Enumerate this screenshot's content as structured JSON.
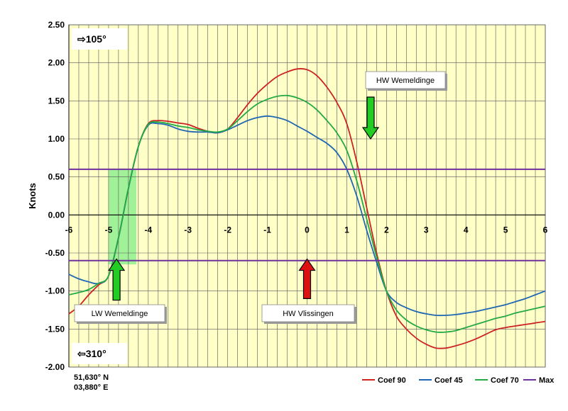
{
  "chart_data": {
    "type": "line",
    "ylabel": "Knots",
    "xlabel": "",
    "xlim": [
      -6,
      6
    ],
    "ylim": [
      -2.0,
      2.5
    ],
    "x_ticks": [
      "-6",
      "-5",
      "-4",
      "-3",
      "-2",
      "-1",
      "0",
      "1",
      "2",
      "3",
      "4",
      "5",
      "6"
    ],
    "y_ticks": [
      "2.50",
      "2.00",
      "1.50",
      "1.00",
      "0.50",
      "0.00",
      "-0.50",
      "-1.00",
      "-1.50",
      "-2.00"
    ],
    "grid": true,
    "background_color": "#ffffc8",
    "legend_position": "bottom-right",
    "series": [
      {
        "name": "Coef 90",
        "color": "#cc2222",
        "points": [
          [
            -6,
            -1.3
          ],
          [
            -5.75,
            -1.2
          ],
          [
            -5.5,
            -1.05
          ],
          [
            -5.25,
            -0.92
          ],
          [
            -5.0,
            -0.8
          ],
          [
            -4.75,
            -0.3
          ],
          [
            -4.5,
            0.35
          ],
          [
            -4.25,
            0.9
          ],
          [
            -4.0,
            1.2
          ],
          [
            -3.75,
            1.24
          ],
          [
            -3.5,
            1.23
          ],
          [
            -3.25,
            1.21
          ],
          [
            -3.0,
            1.19
          ],
          [
            -2.75,
            1.14
          ],
          [
            -2.5,
            1.1
          ],
          [
            -2.25,
            1.08
          ],
          [
            -2.0,
            1.13
          ],
          [
            -1.75,
            1.28
          ],
          [
            -1.5,
            1.45
          ],
          [
            -1.25,
            1.6
          ],
          [
            -1.0,
            1.72
          ],
          [
            -0.75,
            1.82
          ],
          [
            -0.5,
            1.88
          ],
          [
            -0.25,
            1.92
          ],
          [
            0.0,
            1.91
          ],
          [
            0.25,
            1.83
          ],
          [
            0.5,
            1.68
          ],
          [
            0.75,
            1.48
          ],
          [
            1.0,
            1.2
          ],
          [
            1.25,
            0.7
          ],
          [
            1.5,
            0.1
          ],
          [
            1.75,
            -0.5
          ],
          [
            2.0,
            -1.0
          ],
          [
            2.25,
            -1.33
          ],
          [
            2.5,
            -1.5
          ],
          [
            2.75,
            -1.62
          ],
          [
            3.0,
            -1.7
          ],
          [
            3.25,
            -1.75
          ],
          [
            3.5,
            -1.75
          ],
          [
            3.75,
            -1.72
          ],
          [
            4.0,
            -1.68
          ],
          [
            4.25,
            -1.63
          ],
          [
            4.5,
            -1.57
          ],
          [
            4.75,
            -1.51
          ],
          [
            5.0,
            -1.48
          ],
          [
            5.25,
            -1.46
          ],
          [
            5.5,
            -1.44
          ],
          [
            5.75,
            -1.42
          ],
          [
            6.0,
            -1.4
          ]
        ]
      },
      {
        "name": "Coef 45",
        "color": "#1f66b3",
        "points": [
          [
            -6,
            -0.78
          ],
          [
            -5.75,
            -0.84
          ],
          [
            -5.5,
            -0.88
          ],
          [
            -5.25,
            -0.9
          ],
          [
            -5.0,
            -0.8
          ],
          [
            -4.75,
            -0.3
          ],
          [
            -4.5,
            0.35
          ],
          [
            -4.25,
            0.9
          ],
          [
            -4.0,
            1.18
          ],
          [
            -3.75,
            1.2
          ],
          [
            -3.5,
            1.18
          ],
          [
            -3.25,
            1.13
          ],
          [
            -3.0,
            1.1
          ],
          [
            -2.75,
            1.09
          ],
          [
            -2.5,
            1.09
          ],
          [
            -2.25,
            1.08
          ],
          [
            -2.0,
            1.12
          ],
          [
            -1.75,
            1.18
          ],
          [
            -1.5,
            1.24
          ],
          [
            -1.25,
            1.28
          ],
          [
            -1.0,
            1.3
          ],
          [
            -0.75,
            1.28
          ],
          [
            -0.5,
            1.24
          ],
          [
            -0.25,
            1.17
          ],
          [
            0.0,
            1.1
          ],
          [
            0.25,
            1.02
          ],
          [
            0.5,
            0.94
          ],
          [
            0.75,
            0.82
          ],
          [
            1.0,
            0.6
          ],
          [
            1.25,
            0.25
          ],
          [
            1.5,
            -0.2
          ],
          [
            1.75,
            -0.62
          ],
          [
            2.0,
            -1.0
          ],
          [
            2.25,
            -1.15
          ],
          [
            2.5,
            -1.22
          ],
          [
            2.75,
            -1.27
          ],
          [
            3.0,
            -1.3
          ],
          [
            3.25,
            -1.32
          ],
          [
            3.5,
            -1.32
          ],
          [
            3.75,
            -1.31
          ],
          [
            4.0,
            -1.29
          ],
          [
            4.25,
            -1.27
          ],
          [
            4.5,
            -1.24
          ],
          [
            4.75,
            -1.21
          ],
          [
            5.0,
            -1.18
          ],
          [
            5.25,
            -1.14
          ],
          [
            5.5,
            -1.1
          ],
          [
            5.75,
            -1.05
          ],
          [
            6.0,
            -1.0
          ]
        ]
      },
      {
        "name": "Coef 70",
        "color": "#22aa44",
        "points": [
          [
            -6,
            -1.05
          ],
          [
            -5.75,
            -1.02
          ],
          [
            -5.5,
            -0.98
          ],
          [
            -5.25,
            -0.9
          ],
          [
            -5.0,
            -0.8
          ],
          [
            -4.75,
            -0.3
          ],
          [
            -4.5,
            0.35
          ],
          [
            -4.25,
            0.9
          ],
          [
            -4.0,
            1.19
          ],
          [
            -3.75,
            1.22
          ],
          [
            -3.5,
            1.2
          ],
          [
            -3.25,
            1.17
          ],
          [
            -3.0,
            1.15
          ],
          [
            -2.75,
            1.12
          ],
          [
            -2.5,
            1.1
          ],
          [
            -2.25,
            1.09
          ],
          [
            -2.0,
            1.13
          ],
          [
            -1.75,
            1.24
          ],
          [
            -1.5,
            1.36
          ],
          [
            -1.25,
            1.46
          ],
          [
            -1.0,
            1.52
          ],
          [
            -0.75,
            1.56
          ],
          [
            -0.5,
            1.57
          ],
          [
            -0.25,
            1.54
          ],
          [
            0.0,
            1.48
          ],
          [
            0.25,
            1.38
          ],
          [
            0.5,
            1.24
          ],
          [
            0.75,
            1.08
          ],
          [
            1.0,
            0.85
          ],
          [
            1.25,
            0.45
          ],
          [
            1.5,
            -0.05
          ],
          [
            1.75,
            -0.55
          ],
          [
            2.0,
            -1.0
          ],
          [
            2.25,
            -1.25
          ],
          [
            2.5,
            -1.38
          ],
          [
            2.75,
            -1.46
          ],
          [
            3.0,
            -1.51
          ],
          [
            3.25,
            -1.54
          ],
          [
            3.5,
            -1.54
          ],
          [
            3.75,
            -1.52
          ],
          [
            4.0,
            -1.48
          ],
          [
            4.25,
            -1.44
          ],
          [
            4.5,
            -1.4
          ],
          [
            4.75,
            -1.36
          ],
          [
            5.0,
            -1.33
          ],
          [
            5.25,
            -1.29
          ],
          [
            5.5,
            -1.26
          ],
          [
            5.75,
            -1.23
          ],
          [
            6.0,
            -1.2
          ]
        ]
      },
      {
        "name": "Max",
        "color": "#7030a0",
        "lines_at": [
          0.6,
          -0.6
        ]
      }
    ],
    "highlight_band": {
      "x_range": [
        -5.0,
        -4.3
      ],
      "y_range": [
        -0.65,
        0.6
      ],
      "color": "#90ee90"
    },
    "annotations": [
      {
        "id": "hw-wemeldinge",
        "text": "HW Wemeldinge",
        "arrow_color": "#22cc22",
        "arrow_x": 1.6,
        "arrow_direction": "down",
        "arrow_y_range": [
          1.55,
          1.0
        ]
      },
      {
        "id": "lw-wemeldinge",
        "text": "LW Wemeldinge",
        "arrow_color": "#22cc22",
        "arrow_x": -4.8,
        "arrow_direction": "up",
        "arrow_y_range": [
          -1.12,
          -0.58
        ]
      },
      {
        "id": "hw-vlissingen",
        "text": "HW Vlissingen",
        "arrow_color": "#dd1111",
        "arrow_x": 0.0,
        "arrow_direction": "up",
        "arrow_y_range": [
          -1.1,
          -0.58
        ]
      }
    ],
    "direction_labels": [
      {
        "id": "dir-flood",
        "text": "⇨105°"
      },
      {
        "id": "dir-ebb",
        "text": "⇦310°"
      }
    ],
    "coordinates": [
      "51,630° N",
      "03,880° E"
    ]
  }
}
